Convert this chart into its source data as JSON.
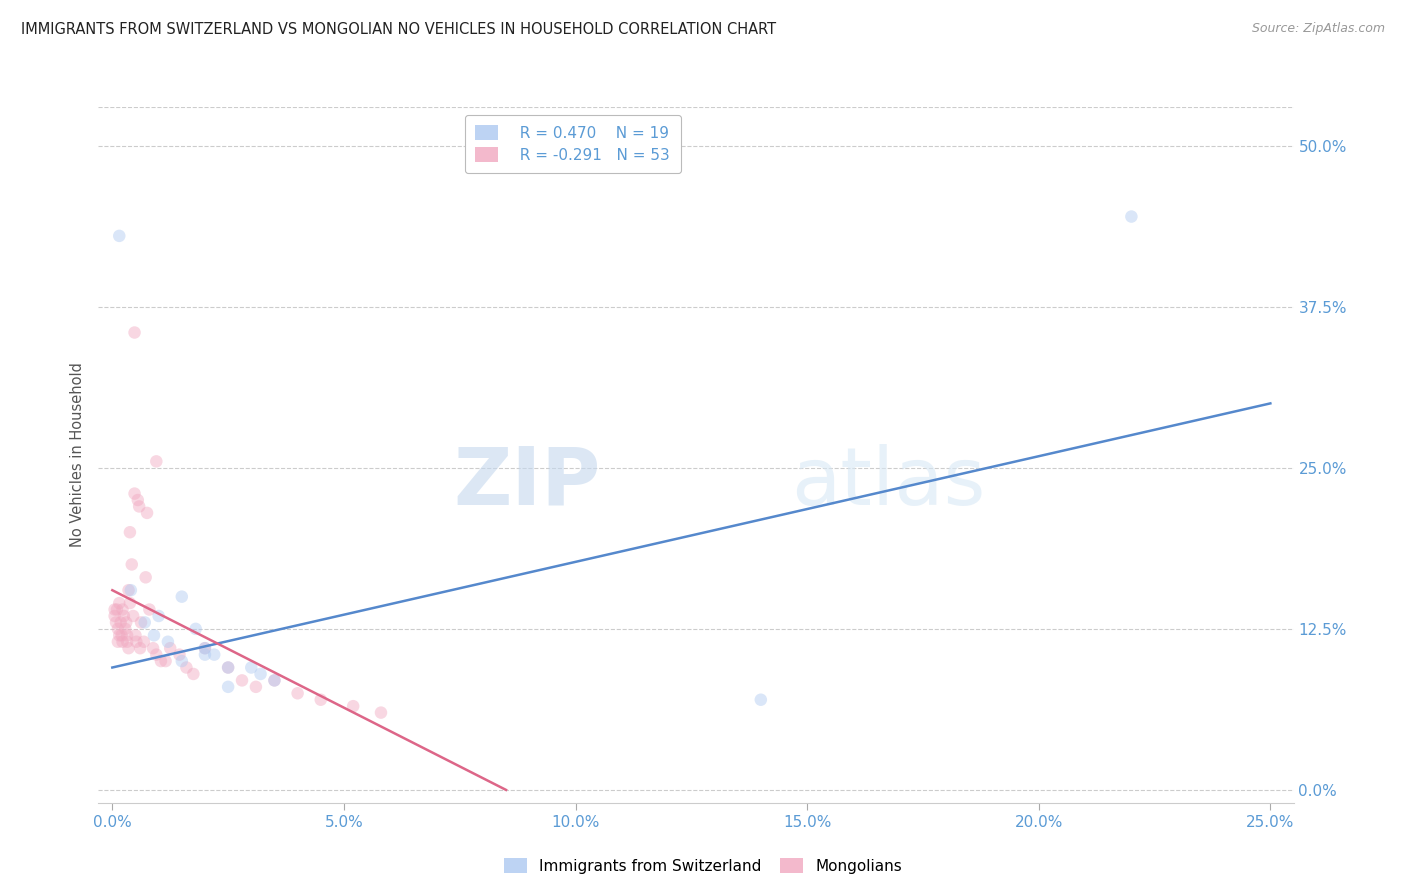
{
  "title": "IMMIGRANTS FROM SWITZERLAND VS MONGOLIAN NO VEHICLES IN HOUSEHOLD CORRELATION CHART",
  "source": "Source: ZipAtlas.com",
  "xlabel_vals": [
    0.0,
    5.0,
    10.0,
    15.0,
    20.0,
    25.0
  ],
  "ylabel_vals_right": [
    0.0,
    12.5,
    25.0,
    37.5,
    50.0
  ],
  "xlim": [
    -0.3,
    25.5
  ],
  "ylim": [
    -1.0,
    53.0
  ],
  "legend_blue_r": "R = 0.470",
  "legend_blue_n": "N = 19",
  "legend_pink_r": "R = -0.291",
  "legend_pink_n": "N = 53",
  "legend_label_blue": "Immigrants from Switzerland",
  "legend_label_pink": "Mongolians",
  "blue_color": "#adc8f0",
  "pink_color": "#f0a8c0",
  "blue_line_color": "#5588cc",
  "pink_line_color": "#dd6688",
  "axis_label_color": "#5b9bd5",
  "title_color": "#222222",
  "watermark_zip": "ZIP",
  "watermark_atlas": "atlas",
  "blue_points_x": [
    0.4,
    0.15,
    1.0,
    0.7,
    0.9,
    1.5,
    2.0,
    2.2,
    1.8,
    2.5,
    3.0,
    3.2,
    3.5,
    1.2,
    1.5,
    2.0,
    2.5,
    14.0,
    22.0
  ],
  "blue_points_y": [
    15.5,
    43.0,
    13.5,
    13.0,
    12.0,
    15.0,
    11.0,
    10.5,
    12.5,
    9.5,
    9.5,
    9.0,
    8.5,
    11.5,
    10.0,
    10.5,
    8.0,
    7.0,
    44.5
  ],
  "pink_points_x": [
    0.05,
    0.05,
    0.08,
    0.1,
    0.12,
    0.12,
    0.15,
    0.15,
    0.18,
    0.2,
    0.22,
    0.22,
    0.25,
    0.28,
    0.3,
    0.32,
    0.32,
    0.35,
    0.35,
    0.38,
    0.42,
    0.45,
    0.48,
    0.5,
    0.52,
    0.55,
    0.6,
    0.62,
    0.68,
    0.72,
    0.8,
    0.88,
    0.95,
    1.05,
    1.15,
    1.25,
    1.45,
    1.6,
    1.75,
    2.0,
    2.5,
    2.8,
    3.1,
    3.5,
    4.0,
    4.5,
    5.2,
    5.8,
    0.38,
    0.48,
    0.58,
    0.75,
    0.95
  ],
  "pink_points_y": [
    13.5,
    14.0,
    13.0,
    14.0,
    12.5,
    11.5,
    12.0,
    14.5,
    13.0,
    12.0,
    11.5,
    14.0,
    13.5,
    12.5,
    13.0,
    11.5,
    12.0,
    11.0,
    15.5,
    14.5,
    17.5,
    13.5,
    35.5,
    12.0,
    11.5,
    22.5,
    11.0,
    13.0,
    11.5,
    16.5,
    14.0,
    11.0,
    10.5,
    10.0,
    10.0,
    11.0,
    10.5,
    9.5,
    9.0,
    11.0,
    9.5,
    8.5,
    8.0,
    8.5,
    7.5,
    7.0,
    6.5,
    6.0,
    20.0,
    23.0,
    22.0,
    21.5,
    25.5
  ],
  "blue_line_x": [
    0.0,
    25.0
  ],
  "blue_line_y": [
    9.5,
    30.0
  ],
  "pink_line_x": [
    0.0,
    8.5
  ],
  "pink_line_y": [
    15.5,
    0.0
  ],
  "grid_color": "#cccccc",
  "background_color": "#ffffff",
  "marker_size": 9,
  "marker_alpha": 0.45,
  "line_width": 1.8
}
